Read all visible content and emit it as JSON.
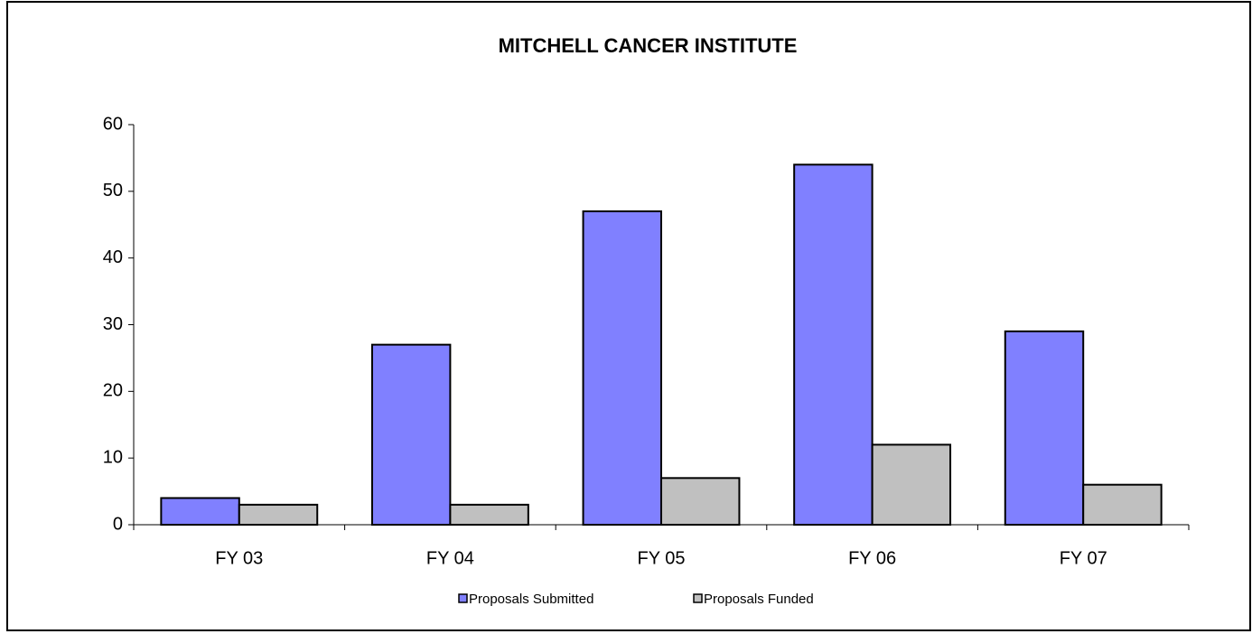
{
  "chart_data": {
    "type": "bar",
    "title": "MITCHELL CANCER INSTITUTE",
    "categories": [
      "FY 03",
      "FY 04",
      "FY 05",
      "FY 06",
      "FY 07"
    ],
    "series": [
      {
        "name": "Proposals Submitted",
        "color": "#8080ff",
        "values": [
          4,
          27,
          47,
          54,
          29
        ]
      },
      {
        "name": "Proposals Funded",
        "color": "#c0c0c0",
        "values": [
          3,
          3,
          7,
          12,
          6
        ]
      }
    ],
    "ylim": [
      0,
      60
    ],
    "yticks": [
      0,
      10,
      20,
      30,
      40,
      50,
      60
    ],
    "grid": false,
    "legend": "bottom"
  }
}
